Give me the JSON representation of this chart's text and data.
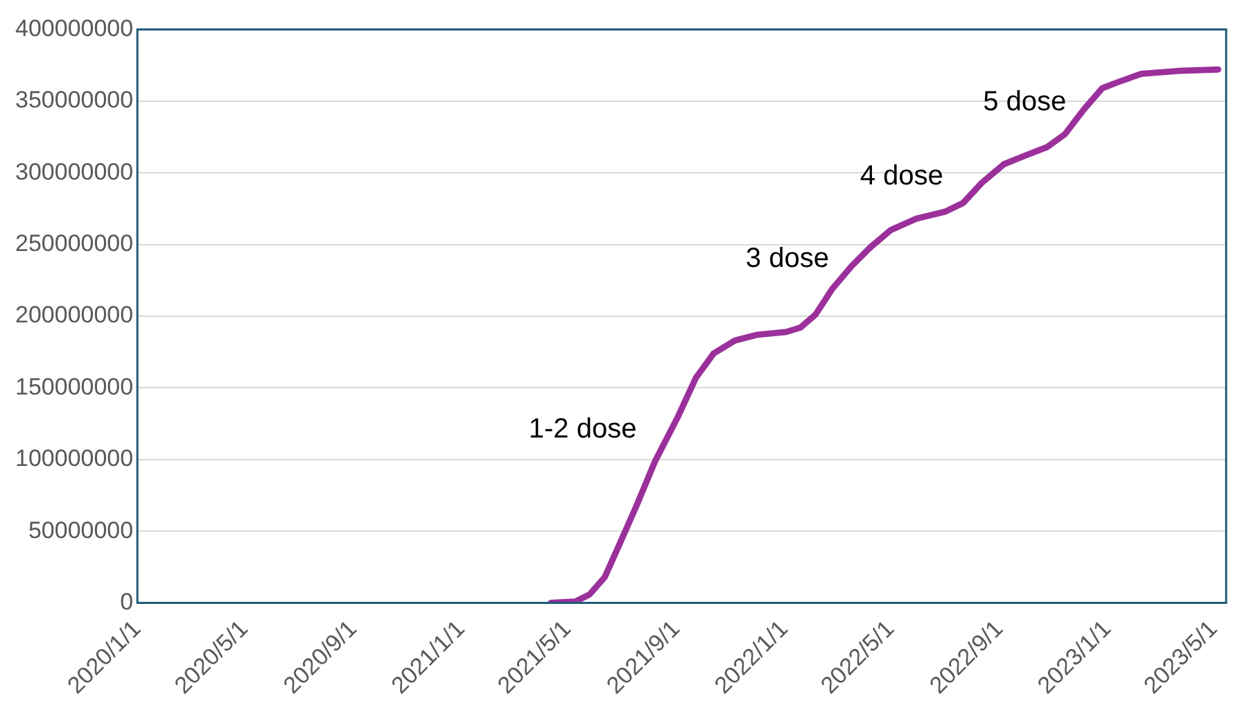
{
  "chart_data": {
    "type": "line",
    "x": [
      "2021-04-12",
      "2021-05-10",
      "2021-05-26",
      "2021-06-12",
      "2021-06-28",
      "2021-07-18",
      "2021-08-08",
      "2021-09-02",
      "2021-09-23",
      "2021-10-13",
      "2021-11-06",
      "2021-12-01",
      "2022-01-03",
      "2022-01-19",
      "2022-02-05",
      "2022-02-24",
      "2022-03-18",
      "2022-04-08",
      "2022-05-01",
      "2022-05-30",
      "2022-07-02",
      "2022-07-22",
      "2022-08-12",
      "2022-09-06",
      "2022-09-30",
      "2022-10-25",
      "2022-11-14",
      "2022-12-05",
      "2022-12-26",
      "2023-01-12",
      "2023-02-08",
      "2023-03-21",
      "2023-05-06"
    ],
    "series": [
      {
        "color": "#9b309b",
        "values": [
          0,
          1000000,
          6000000,
          18000000,
          40000000,
          68000000,
          99000000,
          129000000,
          157000000,
          174000000,
          183000000,
          187000000,
          189000000,
          192000000,
          201000000,
          219000000,
          235000000,
          248000000,
          260000000,
          268000000,
          273000000,
          279000000,
          293000000,
          306000000,
          312000000,
          318000000,
          327000000,
          344000000,
          359000000,
          363000000,
          369000000,
          371000000,
          372000000
        ]
      }
    ],
    "xlim": [
      "2020-01-01",
      "2023-05-15"
    ],
    "xticks": [
      {
        "value": "2020-01-01",
        "label": "2020/1/1"
      },
      {
        "value": "2020-05-01",
        "label": "2020/5/1"
      },
      {
        "value": "2020-09-01",
        "label": "2020/9/1"
      },
      {
        "value": "2021-01-01",
        "label": "2021/1/1"
      },
      {
        "value": "2021-05-01",
        "label": "2021/5/1"
      },
      {
        "value": "2021-09-01",
        "label": "2021/9/1"
      },
      {
        "value": "2022-01-01",
        "label": "2022/1/1"
      },
      {
        "value": "2022-05-01",
        "label": "2022/5/1"
      },
      {
        "value": "2022-09-01",
        "label": "2022/9/1"
      },
      {
        "value": "2023-01-01",
        "label": "2023/1/1"
      },
      {
        "value": "2023-05-01",
        "label": "2023/5/1"
      }
    ],
    "ylim": [
      0,
      400000000
    ],
    "yticks": [
      0,
      50000000,
      100000000,
      150000000,
      200000000,
      250000000,
      300000000,
      350000000,
      400000000
    ],
    "grid": "y",
    "marker": "none",
    "line_style": "solid",
    "legend": false,
    "annotations": [
      "1-2 dose",
      "3 dose",
      "4 dose",
      "5 dose"
    ]
  }
}
